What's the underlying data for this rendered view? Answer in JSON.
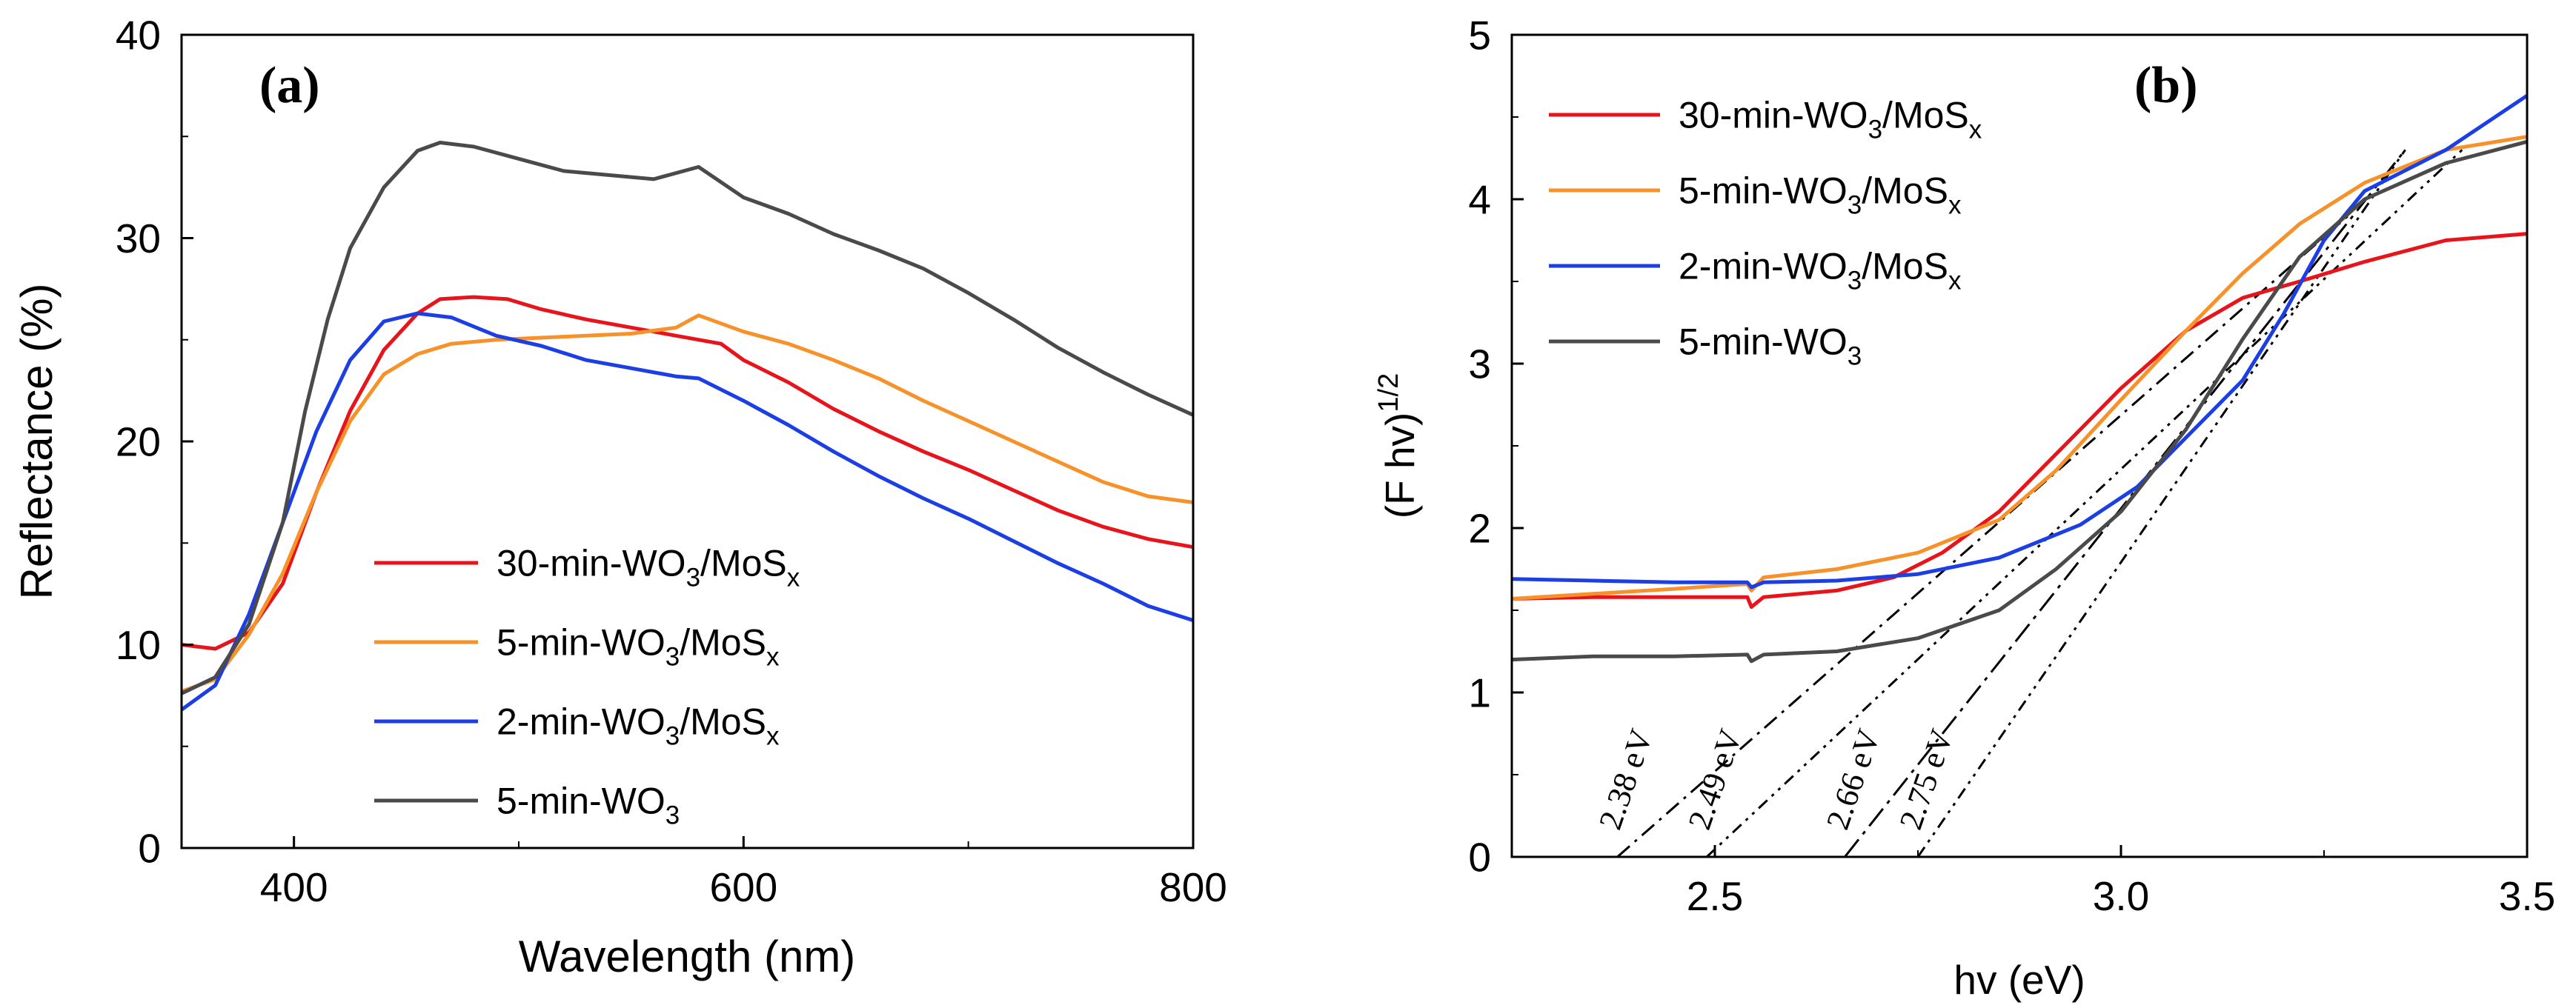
{
  "chart_data": [
    {
      "type": "line",
      "panel_label": "(a)",
      "xlabel": "Wavelength (nm)",
      "ylabel": "Reflectance (%)",
      "xlim": [
        350,
        800
      ],
      "ylim": [
        0,
        40
      ],
      "xticks": [
        400,
        600,
        800
      ],
      "xtick_labels": [
        "400",
        "600",
        "800"
      ],
      "yticks": [
        0,
        10,
        20,
        30,
        40
      ],
      "ytick_labels": [
        "0",
        "10",
        "20",
        "30",
        "40"
      ],
      "legend_position": "bottom-center",
      "series": [
        {
          "name_main": "30-min-WO",
          "name_sub1": "3",
          "name_mid": "/MoS",
          "name_sub2": "x",
          "color": "#e8141b",
          "points": [
            [
              350,
              10.0
            ],
            [
              365,
              9.8
            ],
            [
              380,
              10.6
            ],
            [
              395,
              13.0
            ],
            [
              410,
              17.5
            ],
            [
              425,
              21.5
            ],
            [
              440,
              24.5
            ],
            [
              455,
              26.3
            ],
            [
              465,
              27.0
            ],
            [
              480,
              27.1
            ],
            [
              495,
              27.0
            ],
            [
              510,
              26.5
            ],
            [
              530,
              26.0
            ],
            [
              550,
              25.6
            ],
            [
              570,
              25.2
            ],
            [
              590,
              24.8
            ],
            [
              600,
              24.0
            ],
            [
              620,
              22.9
            ],
            [
              640,
              21.6
            ],
            [
              660,
              20.5
            ],
            [
              680,
              19.5
            ],
            [
              700,
              18.6
            ],
            [
              720,
              17.6
            ],
            [
              740,
              16.6
            ],
            [
              760,
              15.8
            ],
            [
              780,
              15.2
            ],
            [
              800,
              14.8
            ]
          ]
        },
        {
          "name_main": "5-min-WO",
          "name_sub1": "3",
          "name_mid": "/MoS",
          "name_sub2": "x",
          "color": "#f7922a",
          "points": [
            [
              350,
              7.7
            ],
            [
              365,
              8.3
            ],
            [
              380,
              10.5
            ],
            [
              395,
              13.5
            ],
            [
              410,
              17.5
            ],
            [
              425,
              21.0
            ],
            [
              440,
              23.3
            ],
            [
              455,
              24.3
            ],
            [
              470,
              24.8
            ],
            [
              490,
              25.0
            ],
            [
              510,
              25.1
            ],
            [
              530,
              25.2
            ],
            [
              550,
              25.3
            ],
            [
              570,
              25.6
            ],
            [
              580,
              26.2
            ],
            [
              590,
              25.8
            ],
            [
              600,
              25.4
            ],
            [
              620,
              24.8
            ],
            [
              640,
              24.0
            ],
            [
              660,
              23.1
            ],
            [
              680,
              22.0
            ],
            [
              700,
              21.0
            ],
            [
              720,
              20.0
            ],
            [
              740,
              19.0
            ],
            [
              760,
              18.0
            ],
            [
              780,
              17.3
            ],
            [
              800,
              17.0
            ]
          ]
        },
        {
          "name_main": "2-min-WO",
          "name_sub1": "3",
          "name_mid": "/MoS",
          "name_sub2": "x",
          "color": "#1b3fe4",
          "points": [
            [
              350,
              6.8
            ],
            [
              365,
              8.0
            ],
            [
              380,
              11.5
            ],
            [
              395,
              16.0
            ],
            [
              410,
              20.5
            ],
            [
              425,
              24.0
            ],
            [
              440,
              25.9
            ],
            [
              455,
              26.3
            ],
            [
              470,
              26.1
            ],
            [
              490,
              25.2
            ],
            [
              510,
              24.7
            ],
            [
              530,
              24.0
            ],
            [
              550,
              23.6
            ],
            [
              570,
              23.2
            ],
            [
              580,
              23.1
            ],
            [
              600,
              22.0
            ],
            [
              620,
              20.8
            ],
            [
              640,
              19.5
            ],
            [
              660,
              18.3
            ],
            [
              680,
              17.2
            ],
            [
              700,
              16.2
            ],
            [
              720,
              15.1
            ],
            [
              740,
              14.0
            ],
            [
              760,
              13.0
            ],
            [
              780,
              11.9
            ],
            [
              800,
              11.2
            ]
          ]
        },
        {
          "name_main": "5-min-WO",
          "name_sub1": "3",
          "name_mid": "",
          "name_sub2": "",
          "color": "#4a4a4a",
          "points": [
            [
              350,
              7.6
            ],
            [
              365,
              8.4
            ],
            [
              380,
              11.0
            ],
            [
              395,
              16.0
            ],
            [
              405,
              21.5
            ],
            [
              415,
              26.0
            ],
            [
              425,
              29.5
            ],
            [
              440,
              32.5
            ],
            [
              455,
              34.3
            ],
            [
              465,
              34.7
            ],
            [
              480,
              34.5
            ],
            [
              500,
              33.9
            ],
            [
              520,
              33.3
            ],
            [
              540,
              33.1
            ],
            [
              560,
              32.9
            ],
            [
              580,
              33.5
            ],
            [
              600,
              32.0
            ],
            [
              620,
              31.2
            ],
            [
              640,
              30.2
            ],
            [
              660,
              29.4
            ],
            [
              680,
              28.5
            ],
            [
              700,
              27.3
            ],
            [
              720,
              26.0
            ],
            [
              740,
              24.6
            ],
            [
              760,
              23.4
            ],
            [
              780,
              22.3
            ],
            [
              800,
              21.3
            ]
          ]
        }
      ]
    },
    {
      "type": "line",
      "panel_label": "(b)",
      "xlabel": "hv (eV)",
      "ylabel_main": "(F hv)",
      "ylabel_sup": "1/2",
      "xlim": [
        2.25,
        3.5
      ],
      "ylim": [
        0,
        5
      ],
      "xticks": [
        2.5,
        3.0,
        3.5
      ],
      "xtick_labels": [
        "2.5",
        "3.0",
        "3.5"
      ],
      "yticks": [
        0,
        1,
        2,
        3,
        4,
        5
      ],
      "ytick_labels": [
        "0",
        "1",
        "2",
        "3",
        "4",
        "5"
      ],
      "legend_position": "top-left",
      "series": [
        {
          "name_main": "30-min-WO",
          "name_sub1": "3",
          "name_mid": "/MoS",
          "name_sub2": "x",
          "color": "#e8141b",
          "points": [
            [
              2.25,
              1.57
            ],
            [
              2.35,
              1.58
            ],
            [
              2.45,
              1.58
            ],
            [
              2.54,
              1.58
            ],
            [
              2.545,
              1.52
            ],
            [
              2.56,
              1.58
            ],
            [
              2.65,
              1.62
            ],
            [
              2.72,
              1.7
            ],
            [
              2.78,
              1.85
            ],
            [
              2.85,
              2.1
            ],
            [
              2.92,
              2.45
            ],
            [
              3.0,
              2.85
            ],
            [
              3.08,
              3.2
            ],
            [
              3.15,
              3.4
            ],
            [
              3.22,
              3.5
            ],
            [
              3.3,
              3.62
            ],
            [
              3.4,
              3.75
            ],
            [
              3.5,
              3.79
            ]
          ]
        },
        {
          "name_main": "5-min-WO",
          "name_sub1": "3",
          "name_mid": "/MoS",
          "name_sub2": "x",
          "color": "#f7922a",
          "points": [
            [
              2.25,
              1.57
            ],
            [
              2.35,
              1.6
            ],
            [
              2.45,
              1.63
            ],
            [
              2.54,
              1.66
            ],
            [
              2.545,
              1.62
            ],
            [
              2.56,
              1.7
            ],
            [
              2.65,
              1.75
            ],
            [
              2.75,
              1.85
            ],
            [
              2.85,
              2.05
            ],
            [
              2.92,
              2.35
            ],
            [
              3.0,
              2.78
            ],
            [
              3.08,
              3.2
            ],
            [
              3.15,
              3.55
            ],
            [
              3.22,
              3.85
            ],
            [
              3.3,
              4.1
            ],
            [
              3.4,
              4.3
            ],
            [
              3.5,
              4.38
            ]
          ]
        },
        {
          "name_main": "2-min-WO",
          "name_sub1": "3",
          "name_mid": "/MoS",
          "name_sub2": "x",
          "color": "#1b3fe4",
          "points": [
            [
              2.25,
              1.69
            ],
            [
              2.35,
              1.68
            ],
            [
              2.45,
              1.67
            ],
            [
              2.54,
              1.67
            ],
            [
              2.545,
              1.64
            ],
            [
              2.56,
              1.67
            ],
            [
              2.65,
              1.68
            ],
            [
              2.75,
              1.72
            ],
            [
              2.85,
              1.82
            ],
            [
              2.95,
              2.02
            ],
            [
              3.02,
              2.25
            ],
            [
              3.08,
              2.55
            ],
            [
              3.15,
              2.9
            ],
            [
              3.2,
              3.3
            ],
            [
              3.25,
              3.75
            ],
            [
              3.3,
              4.05
            ],
            [
              3.4,
              4.3
            ],
            [
              3.5,
              4.63
            ]
          ]
        },
        {
          "name_main": "5-min-WO",
          "name_sub1": "3",
          "name_mid": "",
          "name_sub2": "",
          "color": "#4a4a4a",
          "points": [
            [
              2.25,
              1.2
            ],
            [
              2.35,
              1.22
            ],
            [
              2.45,
              1.22
            ],
            [
              2.54,
              1.23
            ],
            [
              2.545,
              1.19
            ],
            [
              2.56,
              1.23
            ],
            [
              2.65,
              1.25
            ],
            [
              2.75,
              1.33
            ],
            [
              2.85,
              1.5
            ],
            [
              2.92,
              1.75
            ],
            [
              3.0,
              2.1
            ],
            [
              3.08,
              2.6
            ],
            [
              3.15,
              3.15
            ],
            [
              3.22,
              3.65
            ],
            [
              3.3,
              4.0
            ],
            [
              3.4,
              4.22
            ],
            [
              3.5,
              4.35
            ]
          ]
        }
      ],
      "tangent_lines": [
        {
          "label": "2.38 eV",
          "x0": 2.38,
          "x1": 3.28,
          "y1": 3.9,
          "style": "dash-dot"
        },
        {
          "label": "2.49 eV",
          "x0": 2.49,
          "x1": 3.42,
          "y1": 4.3,
          "style": "dash-dot-dot"
        },
        {
          "label": "2.66 eV",
          "x0": 2.66,
          "x1": 3.35,
          "y1": 4.3,
          "style": "long-dash-dot"
        },
        {
          "label": "2.75 eV",
          "x0": 2.75,
          "x1": 3.35,
          "y1": 4.3,
          "style": "dash-dot-dot"
        }
      ]
    }
  ]
}
